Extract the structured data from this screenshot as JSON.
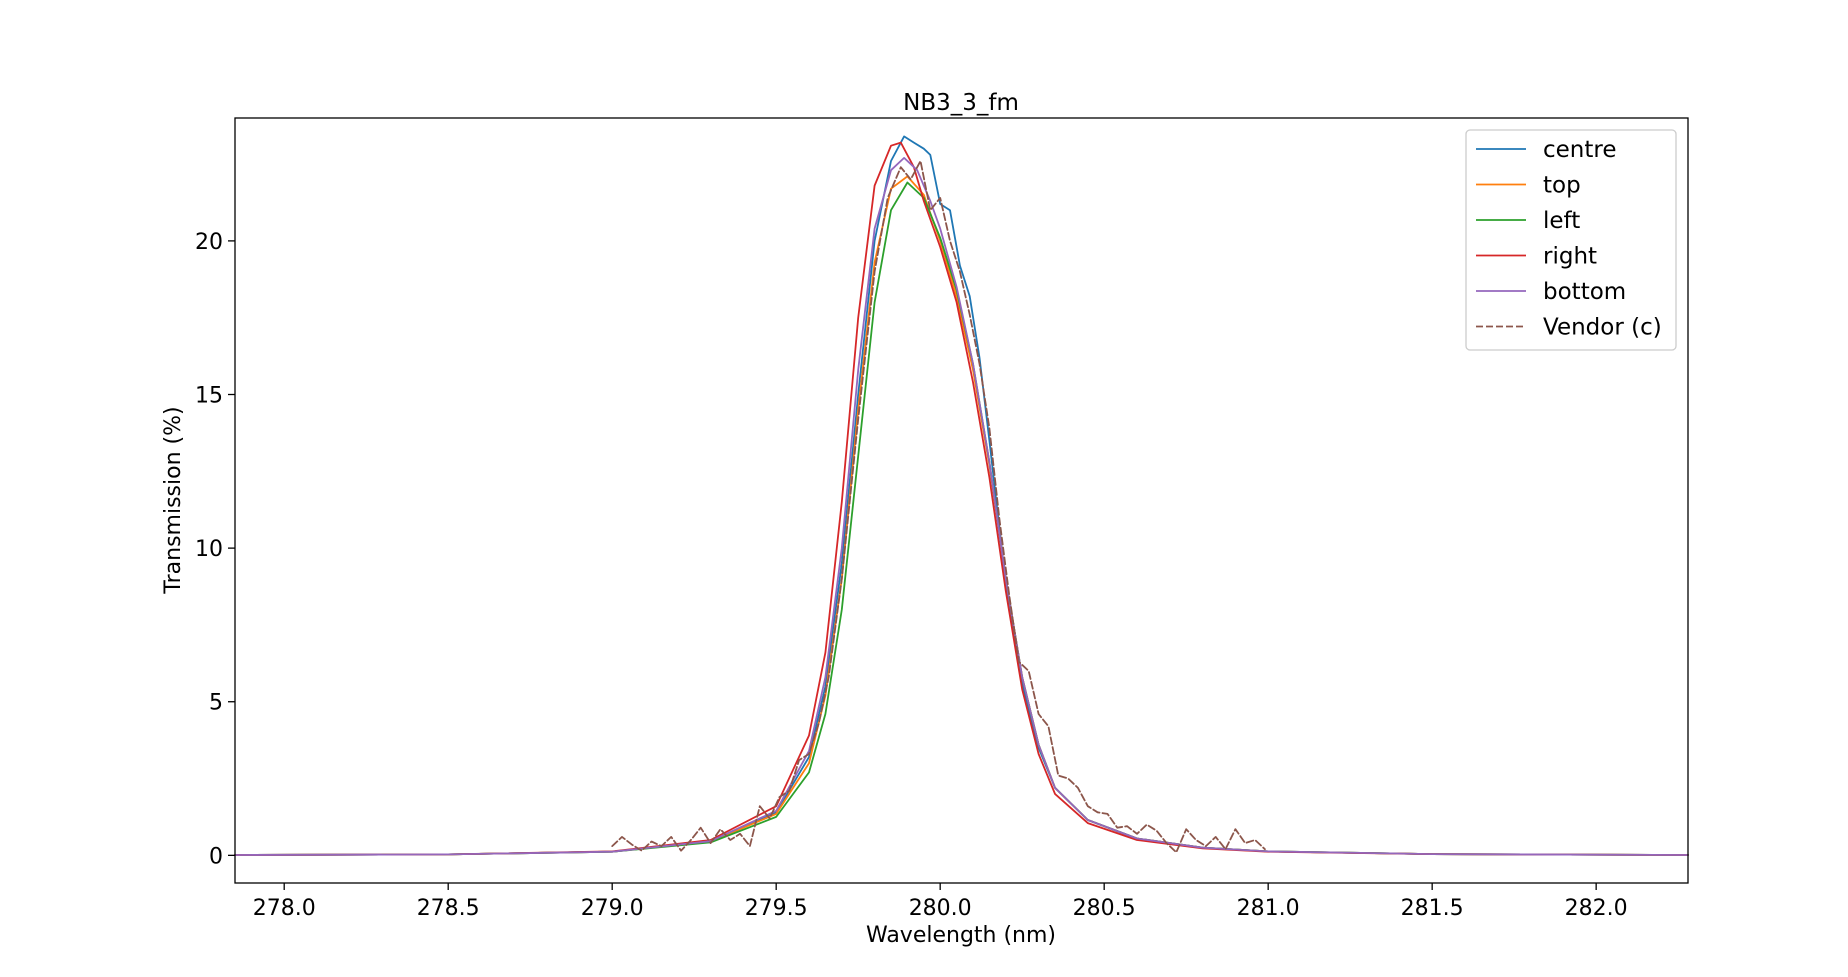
{
  "chart_data": {
    "type": "line",
    "title": "NB3_3_fm",
    "xlabel": "Wavelength (nm)",
    "ylabel": "Transmission (%)",
    "xlim": [
      277.85,
      282.28
    ],
    "ylim": [
      -0.9,
      24.0
    ],
    "xticks": [
      278.0,
      278.5,
      279.0,
      279.5,
      280.0,
      280.5,
      281.0,
      281.5,
      282.0
    ],
    "xtick_labels": [
      "278.0",
      "278.5",
      "279.0",
      "279.5",
      "280.0",
      "280.5",
      "281.0",
      "281.5",
      "282.0"
    ],
    "yticks": [
      0,
      5,
      10,
      15,
      20
    ],
    "ytick_labels": [
      "0",
      "5",
      "10",
      "15",
      "20"
    ],
    "grid": false,
    "legend_position": "top-right",
    "series": [
      {
        "name": "centre",
        "color": "#1f77b4",
        "style": "solid",
        "points": [
          [
            277.85,
            0.01
          ],
          [
            278.5,
            0.03
          ],
          [
            279.0,
            0.12
          ],
          [
            279.3,
            0.45
          ],
          [
            279.5,
            1.4
          ],
          [
            279.6,
            3.2
          ],
          [
            279.65,
            5.5
          ],
          [
            279.7,
            9.5
          ],
          [
            279.75,
            15.0
          ],
          [
            279.8,
            20.0
          ],
          [
            279.85,
            22.6
          ],
          [
            279.89,
            23.4
          ],
          [
            279.92,
            23.2
          ],
          [
            279.95,
            23.0
          ],
          [
            279.97,
            22.8
          ],
          [
            280.0,
            21.2
          ],
          [
            280.03,
            21.0
          ],
          [
            280.06,
            19.2
          ],
          [
            280.09,
            18.2
          ],
          [
            280.12,
            16.2
          ],
          [
            280.15,
            13.5
          ],
          [
            280.2,
            8.8
          ],
          [
            280.25,
            5.6
          ],
          [
            280.3,
            3.5
          ],
          [
            280.35,
            2.2
          ],
          [
            280.45,
            1.15
          ],
          [
            280.6,
            0.55
          ],
          [
            280.8,
            0.25
          ],
          [
            281.0,
            0.13
          ],
          [
            281.5,
            0.04
          ],
          [
            282.28,
            0.01
          ]
        ]
      },
      {
        "name": "top",
        "color": "#ff7f0e",
        "style": "solid",
        "points": [
          [
            277.85,
            0.01
          ],
          [
            278.5,
            0.03
          ],
          [
            279.0,
            0.12
          ],
          [
            279.3,
            0.45
          ],
          [
            279.5,
            1.35
          ],
          [
            279.6,
            3.0
          ],
          [
            279.65,
            5.2
          ],
          [
            279.7,
            9.0
          ],
          [
            279.75,
            14.5
          ],
          [
            279.8,
            19.3
          ],
          [
            279.85,
            21.7
          ],
          [
            279.9,
            22.1
          ],
          [
            279.95,
            21.5
          ],
          [
            280.0,
            20.0
          ],
          [
            280.05,
            18.2
          ],
          [
            280.1,
            15.8
          ],
          [
            280.15,
            12.7
          ],
          [
            280.2,
            9.0
          ],
          [
            280.25,
            5.8
          ],
          [
            280.3,
            3.6
          ],
          [
            280.35,
            2.2
          ],
          [
            280.45,
            1.15
          ],
          [
            280.6,
            0.55
          ],
          [
            280.8,
            0.25
          ],
          [
            281.0,
            0.13
          ],
          [
            281.5,
            0.04
          ],
          [
            282.28,
            0.01
          ]
        ]
      },
      {
        "name": "left",
        "color": "#2ca02c",
        "style": "solid",
        "points": [
          [
            277.85,
            0.01
          ],
          [
            278.5,
            0.03
          ],
          [
            279.0,
            0.12
          ],
          [
            279.3,
            0.42
          ],
          [
            279.5,
            1.25
          ],
          [
            279.6,
            2.7
          ],
          [
            279.65,
            4.6
          ],
          [
            279.7,
            8.0
          ],
          [
            279.75,
            13.0
          ],
          [
            279.8,
            18.0
          ],
          [
            279.85,
            21.0
          ],
          [
            279.9,
            21.9
          ],
          [
            279.95,
            21.4
          ],
          [
            280.0,
            20.1
          ],
          [
            280.05,
            18.4
          ],
          [
            280.1,
            16.0
          ],
          [
            280.15,
            12.8
          ],
          [
            280.2,
            9.0
          ],
          [
            280.25,
            5.8
          ],
          [
            280.3,
            3.6
          ],
          [
            280.35,
            2.2
          ],
          [
            280.45,
            1.15
          ],
          [
            280.6,
            0.55
          ],
          [
            280.8,
            0.25
          ],
          [
            281.0,
            0.13
          ],
          [
            281.5,
            0.04
          ],
          [
            282.28,
            0.01
          ]
        ]
      },
      {
        "name": "right",
        "color": "#d62728",
        "style": "solid",
        "points": [
          [
            277.85,
            0.01
          ],
          [
            278.5,
            0.03
          ],
          [
            279.0,
            0.13
          ],
          [
            279.3,
            0.5
          ],
          [
            279.5,
            1.6
          ],
          [
            279.6,
            3.9
          ],
          [
            279.65,
            6.6
          ],
          [
            279.7,
            11.5
          ],
          [
            279.75,
            17.5
          ],
          [
            279.8,
            21.8
          ],
          [
            279.85,
            23.1
          ],
          [
            279.88,
            23.2
          ],
          [
            279.92,
            22.4
          ],
          [
            279.95,
            21.3
          ],
          [
            280.0,
            19.8
          ],
          [
            280.05,
            18.0
          ],
          [
            280.1,
            15.4
          ],
          [
            280.15,
            12.3
          ],
          [
            280.2,
            8.6
          ],
          [
            280.25,
            5.4
          ],
          [
            280.3,
            3.3
          ],
          [
            280.35,
            2.0
          ],
          [
            280.45,
            1.05
          ],
          [
            280.6,
            0.5
          ],
          [
            280.8,
            0.23
          ],
          [
            281.0,
            0.12
          ],
          [
            281.5,
            0.04
          ],
          [
            282.28,
            0.01
          ]
        ]
      },
      {
        "name": "bottom",
        "color": "#9467bd",
        "style": "solid",
        "points": [
          [
            277.85,
            0.01
          ],
          [
            278.5,
            0.03
          ],
          [
            279.0,
            0.12
          ],
          [
            279.3,
            0.46
          ],
          [
            279.5,
            1.45
          ],
          [
            279.6,
            3.4
          ],
          [
            279.65,
            5.8
          ],
          [
            279.7,
            10.0
          ],
          [
            279.75,
            15.8
          ],
          [
            279.8,
            20.4
          ],
          [
            279.85,
            22.3
          ],
          [
            279.89,
            22.7
          ],
          [
            279.93,
            22.3
          ],
          [
            279.97,
            21.3
          ],
          [
            280.0,
            20.4
          ],
          [
            280.05,
            18.5
          ],
          [
            280.1,
            16.0
          ],
          [
            280.15,
            12.8
          ],
          [
            280.2,
            9.0
          ],
          [
            280.25,
            5.8
          ],
          [
            280.3,
            3.6
          ],
          [
            280.35,
            2.2
          ],
          [
            280.45,
            1.15
          ],
          [
            280.6,
            0.55
          ],
          [
            280.8,
            0.25
          ],
          [
            281.0,
            0.13
          ],
          [
            281.5,
            0.04
          ],
          [
            282.28,
            0.01
          ]
        ]
      },
      {
        "name": "Vendor (c)",
        "color": "#8c564b",
        "style": "dashed",
        "points": [
          [
            279.0,
            0.3
          ],
          [
            279.03,
            0.6
          ],
          [
            279.06,
            0.35
          ],
          [
            279.09,
            0.15
          ],
          [
            279.12,
            0.45
          ],
          [
            279.15,
            0.3
          ],
          [
            279.18,
            0.6
          ],
          [
            279.21,
            0.15
          ],
          [
            279.24,
            0.5
          ],
          [
            279.27,
            0.9
          ],
          [
            279.3,
            0.4
          ],
          [
            279.33,
            0.85
          ],
          [
            279.36,
            0.5
          ],
          [
            279.39,
            0.7
          ],
          [
            279.42,
            0.3
          ],
          [
            279.45,
            1.6
          ],
          [
            279.48,
            1.2
          ],
          [
            279.51,
            1.9
          ],
          [
            279.54,
            2.1
          ],
          [
            279.57,
            3.1
          ],
          [
            279.6,
            3.3
          ],
          [
            279.63,
            4.3
          ],
          [
            279.66,
            5.8
          ],
          [
            279.7,
            9.0
          ],
          [
            279.75,
            14.2
          ],
          [
            279.8,
            19.0
          ],
          [
            279.84,
            21.4
          ],
          [
            279.88,
            22.4
          ],
          [
            279.91,
            22.0
          ],
          [
            279.94,
            22.6
          ],
          [
            279.97,
            21.0
          ],
          [
            280.0,
            21.4
          ],
          [
            280.03,
            20.0
          ],
          [
            280.06,
            19.0
          ],
          [
            280.09,
            17.6
          ],
          [
            280.12,
            16.0
          ],
          [
            280.15,
            13.9
          ],
          [
            280.18,
            11.0
          ],
          [
            280.21,
            8.5
          ],
          [
            280.24,
            6.3
          ],
          [
            280.27,
            6.0
          ],
          [
            280.3,
            4.6
          ],
          [
            280.33,
            4.2
          ],
          [
            280.36,
            2.6
          ],
          [
            280.39,
            2.5
          ],
          [
            280.42,
            2.2
          ],
          [
            280.45,
            1.6
          ],
          [
            280.48,
            1.4
          ],
          [
            280.51,
            1.35
          ],
          [
            280.54,
            0.9
          ],
          [
            280.57,
            0.95
          ],
          [
            280.6,
            0.7
          ],
          [
            280.63,
            1.0
          ],
          [
            280.66,
            0.8
          ],
          [
            280.69,
            0.4
          ],
          [
            280.72,
            0.1
          ],
          [
            280.75,
            0.85
          ],
          [
            280.78,
            0.5
          ],
          [
            280.81,
            0.3
          ],
          [
            280.84,
            0.6
          ],
          [
            280.87,
            0.2
          ],
          [
            280.9,
            0.85
          ],
          [
            280.93,
            0.4
          ],
          [
            280.96,
            0.5
          ],
          [
            280.99,
            0.2
          ]
        ]
      }
    ]
  }
}
